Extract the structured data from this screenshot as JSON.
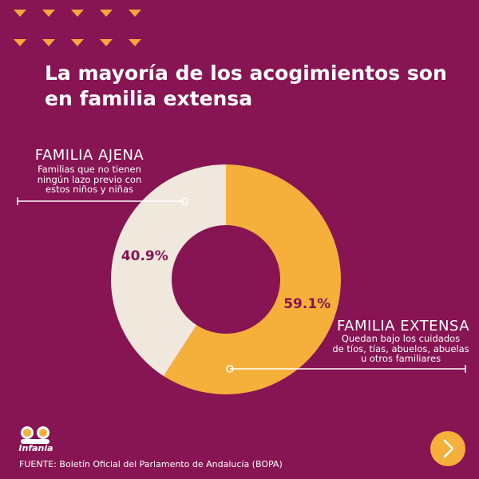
{
  "title": {
    "line1": "La mayoría de los acogimientos son",
    "line2": "en familia extensa"
  },
  "colors": {
    "background": "#871453",
    "extensa": "#f4b03a",
    "ajena": "#f0e7dd",
    "accent": "#f4a73a",
    "text_light": "#ffffff",
    "text_dark": "#871453"
  },
  "chart_data": {
    "type": "pie",
    "subtype": "donut",
    "title": "La mayoría de los acogimientos son en familia extensa",
    "series": [
      {
        "name": "Familia extensa",
        "value": 59.1,
        "label": "59.1%"
      },
      {
        "name": "Familia ajena",
        "value": 40.9,
        "label": "40.9%"
      }
    ],
    "start": "top",
    "direction": "clockwise"
  },
  "labels": {
    "ajena": {
      "heading": "FAMILIA AJENA",
      "desc": [
        "Familias que no tienen",
        "ningún lazo previo con",
        "estos niños y niñas"
      ]
    },
    "extensa": {
      "heading": "FAMILIA EXTENSA",
      "desc": [
        "Quedan bajo los cuidados",
        "de tíos, tías, abuelos, abuelas",
        "u otros familiares"
      ]
    }
  },
  "logo": {
    "text": "Infania"
  },
  "source": "FUENTE: Boletín Oficial del Parlamento de Andalucía (BOPA)",
  "icons": {
    "decor": "triangle-icon",
    "next": "chevron-right-icon"
  }
}
